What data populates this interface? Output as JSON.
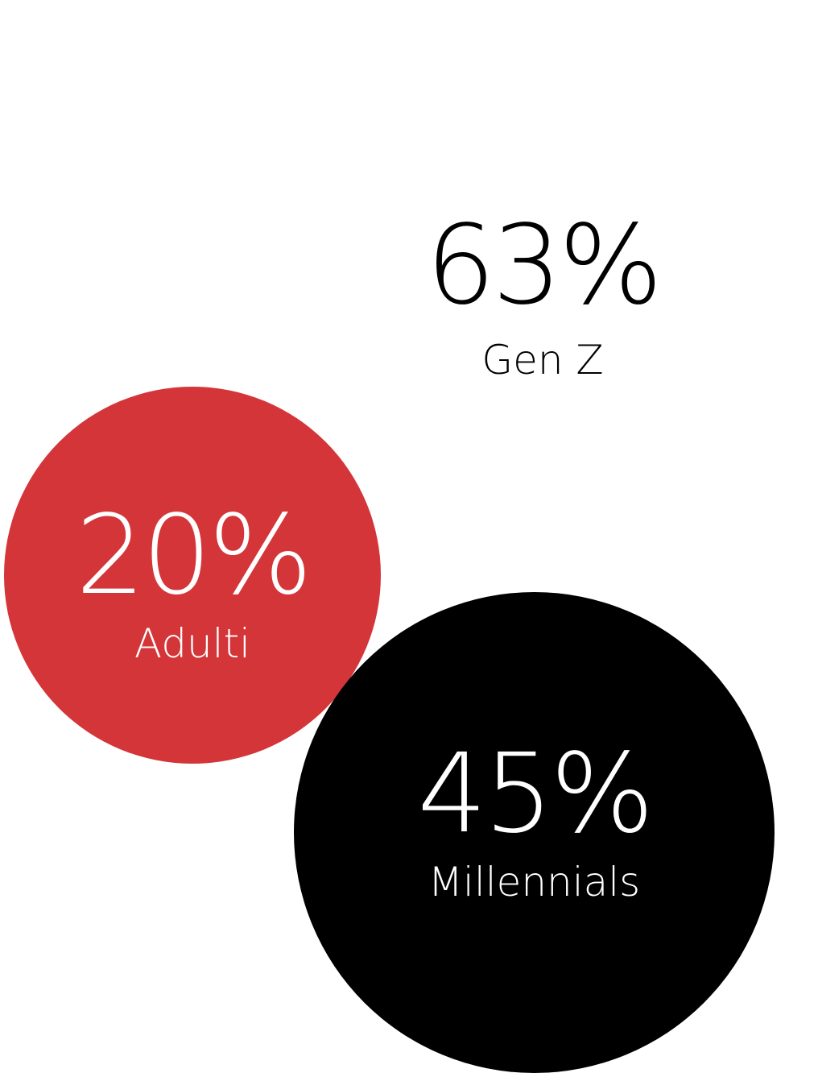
{
  "chart_data": {
    "type": "bubble",
    "items": [
      {
        "label": "Gen Z",
        "value": 63,
        "display": "63%",
        "color": "#ffffff"
      },
      {
        "label": "Adulti",
        "value": 20,
        "display": "20%",
        "color": "#d43539"
      },
      {
        "label": "Millennials",
        "value": 45,
        "display": "45%",
        "color": "#000000"
      }
    ]
  }
}
